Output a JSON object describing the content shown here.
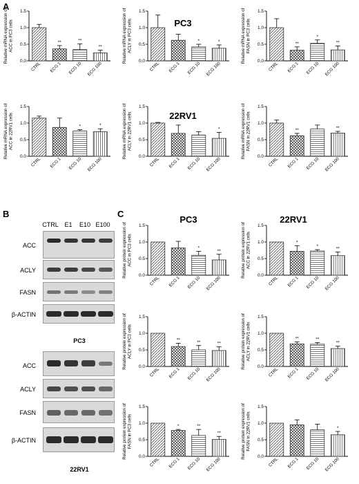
{
  "panels": {
    "A": "A",
    "B": "B",
    "C": "C"
  },
  "titles": {
    "pc3_a": "PC3",
    "rv1_a": "22RV1",
    "pc3_c": "PC3",
    "rv1_c": "22RV1"
  },
  "blot": {
    "lanes": [
      "CTRL",
      "E1",
      "E10",
      "E100"
    ],
    "pc3_rows": [
      "ACC",
      "ACLY",
      "FASN",
      "β-ACTIN"
    ],
    "rv1_rows": [
      "ACC",
      "ACLY",
      "FASN",
      "β-ACTIN"
    ],
    "pc3_cell": "PC3",
    "rv1_cell": "22RV1",
    "pc3_intensity": [
      [
        1.0,
        0.95,
        0.95,
        0.9
      ],
      [
        0.9,
        0.9,
        0.85,
        0.75
      ],
      [
        0.6,
        0.55,
        0.45,
        0.5
      ],
      [
        1.0,
        1.0,
        1.0,
        1.0
      ]
    ],
    "rv1_intensity": [
      [
        1.0,
        0.95,
        0.9,
        0.55
      ],
      [
        0.85,
        0.8,
        0.8,
        0.65
      ],
      [
        0.7,
        0.65,
        0.65,
        0.6
      ],
      [
        1.0,
        1.0,
        1.0,
        1.0
      ]
    ]
  },
  "colors": {
    "bar_fill": "#ffffff",
    "bar_stroke": "#333333",
    "hatch": "#444444"
  },
  "chart_data": [
    {
      "type": "bar",
      "categories": [
        "CTRL",
        "ECG 1",
        "ECG 10",
        "ECG 100"
      ],
      "values": [
        1.0,
        0.36,
        0.34,
        0.24
      ],
      "errors": [
        0.1,
        0.1,
        0.17,
        0.08
      ],
      "sig": [
        "",
        "**",
        "**",
        "**"
      ],
      "ylim": [
        0,
        1.5
      ],
      "yticks": [
        0.0,
        0.5,
        1.0,
        1.5
      ],
      "ylabel": [
        "Relative mRNA expression of",
        "ACC in PC3 cells"
      ]
    },
    {
      "type": "bar",
      "categories": [
        "CTRL",
        "ECG 1",
        "ECG 10",
        "ECG 100"
      ],
      "values": [
        1.0,
        0.62,
        0.42,
        0.38
      ],
      "errors": [
        0.38,
        0.18,
        0.08,
        0.1
      ],
      "sig": [
        "",
        "",
        "*",
        "*"
      ],
      "ylim": [
        0,
        1.5
      ],
      "yticks": [
        0.0,
        0.5,
        1.0,
        1.5
      ],
      "ylabel": [
        "Relative mRNA expression of",
        "ACLY in PC3 cells"
      ]
    },
    {
      "type": "bar",
      "categories": [
        "CTRL",
        "ECG 1",
        "ECG 10",
        "ECG 100"
      ],
      "values": [
        1.0,
        0.32,
        0.53,
        0.33
      ],
      "errors": [
        0.27,
        0.1,
        0.1,
        0.12
      ],
      "sig": [
        "",
        "**",
        "*",
        "**"
      ],
      "ylim": [
        0,
        1.5
      ],
      "yticks": [
        0.0,
        0.5,
        1.0,
        1.5
      ],
      "ylabel": [
        "Relative mRNA expression of",
        "FASN in PC3 cells"
      ]
    },
    {
      "type": "bar",
      "categories": [
        "CTRL",
        "ECG 1",
        "ECG 10",
        "ECG 100"
      ],
      "values": [
        1.15,
        0.87,
        0.76,
        0.74
      ],
      "errors": [
        0.06,
        0.28,
        0.04,
        0.09
      ],
      "sig": [
        "",
        "",
        "*",
        "*"
      ],
      "ylim": [
        0,
        1.5
      ],
      "yticks": [
        0.0,
        0.5,
        1.0,
        1.5
      ],
      "ylabel": [
        "Relative mRNA expression of",
        "ACC in 22RV1 cells"
      ]
    },
    {
      "type": "bar",
      "categories": [
        "CTRL",
        "ECG 1",
        "ECG 10",
        "ECG 100"
      ],
      "values": [
        1.0,
        0.69,
        0.64,
        0.54
      ],
      "errors": [
        0.02,
        0.25,
        0.1,
        0.18
      ],
      "sig": [
        "",
        "",
        "",
        "*"
      ],
      "ylim": [
        0,
        1.5
      ],
      "yticks": [
        0.0,
        0.5,
        1.0,
        1.5
      ],
      "ylabel": [
        "Relative mRNA expression of",
        "ACLY in 22RV1 cells"
      ]
    },
    {
      "type": "bar",
      "categories": [
        "CTRL",
        "ECG 1",
        "ECG 10",
        "ECG 100"
      ],
      "values": [
        1.0,
        0.62,
        0.82,
        0.7
      ],
      "errors": [
        0.09,
        0.07,
        0.12,
        0.05
      ],
      "sig": [
        "",
        "**",
        "",
        "**"
      ],
      "ylim": [
        0,
        1.5
      ],
      "yticks": [
        0.0,
        0.5,
        1.0,
        1.5
      ],
      "ylabel": [
        "Relative mRNA expression of",
        "FASN in 22RV1 cells"
      ]
    },
    {
      "type": "bar",
      "categories": [
        "CTRL",
        "ECG 1",
        "ECG 10",
        "ECG 100"
      ],
      "values": [
        1.0,
        0.82,
        0.6,
        0.46
      ],
      "errors": [
        0.0,
        0.2,
        0.12,
        0.17
      ],
      "sig": [
        "",
        "",
        "*",
        "**"
      ],
      "ylim": [
        0,
        1.5
      ],
      "yticks": [
        0.0,
        0.5,
        1.0,
        1.5
      ],
      "ylabel": [
        "Relative protein expression of",
        "ACC in PC3 cells"
      ]
    },
    {
      "type": "bar",
      "categories": [
        "CTRL",
        "ECG 1",
        "ECG 10",
        "ECG 100"
      ],
      "values": [
        1.0,
        0.72,
        0.73,
        0.59
      ],
      "errors": [
        0.0,
        0.17,
        0.04,
        0.11
      ],
      "sig": [
        "",
        "*",
        "*",
        "**"
      ],
      "ylim": [
        0,
        1.5
      ],
      "yticks": [
        0.0,
        0.5,
        1.0,
        1.5
      ],
      "ylabel": [
        "Relative protein expression of",
        "ACC in 22RV1 cells"
      ]
    },
    {
      "type": "bar",
      "categories": [
        "CTRL",
        "ECG 1",
        "ECG 10",
        "ECG 100"
      ],
      "values": [
        1.0,
        0.6,
        0.5,
        0.48
      ],
      "errors": [
        0.0,
        0.1,
        0.13,
        0.11
      ],
      "sig": [
        "",
        "**",
        "**",
        "**"
      ],
      "ylim": [
        0,
        1.5
      ],
      "yticks": [
        0.0,
        0.5,
        1.0,
        1.5
      ],
      "ylabel": [
        "Relative protein expression of",
        "ACLY in PC3 cells"
      ]
    },
    {
      "type": "bar",
      "categories": [
        "CTRL",
        "ECG 1",
        "ECG 10",
        "ECG 100"
      ],
      "values": [
        1.0,
        0.68,
        0.67,
        0.54
      ],
      "errors": [
        0.0,
        0.06,
        0.05,
        0.07
      ],
      "sig": [
        "",
        "**",
        "**",
        "**"
      ],
      "ylim": [
        0,
        1.5
      ],
      "yticks": [
        0.0,
        0.5,
        1.0,
        1.5
      ],
      "ylabel": [
        "Relative protein expression of",
        "ACLY in 22RV1 cells"
      ]
    },
    {
      "type": "bar",
      "categories": [
        "CTRL",
        "ECG 1",
        "ECG 10",
        "ECG 100"
      ],
      "values": [
        1.0,
        0.78,
        0.63,
        0.51
      ],
      "errors": [
        0.0,
        0.03,
        0.18,
        0.09
      ],
      "sig": [
        "",
        "*",
        "**",
        "**"
      ],
      "ylim": [
        0,
        1.5
      ],
      "yticks": [
        0.0,
        0.5,
        1.0,
        1.5
      ],
      "ylabel": [
        "Relative protein expression of",
        "FASN in PC3 cells"
      ]
    },
    {
      "type": "bar",
      "categories": [
        "CTRL",
        "ECG 1",
        "ECG 10",
        "ECG 100"
      ],
      "values": [
        1.0,
        0.95,
        0.8,
        0.65
      ],
      "errors": [
        0.0,
        0.15,
        0.17,
        0.1
      ],
      "sig": [
        "",
        "",
        "",
        "*"
      ],
      "ylim": [
        0,
        1.5
      ],
      "yticks": [
        0.0,
        0.5,
        1.0,
        1.5
      ],
      "ylabel": [
        "Relative protein expression of",
        "FASN in 22RV1 cells"
      ]
    }
  ]
}
